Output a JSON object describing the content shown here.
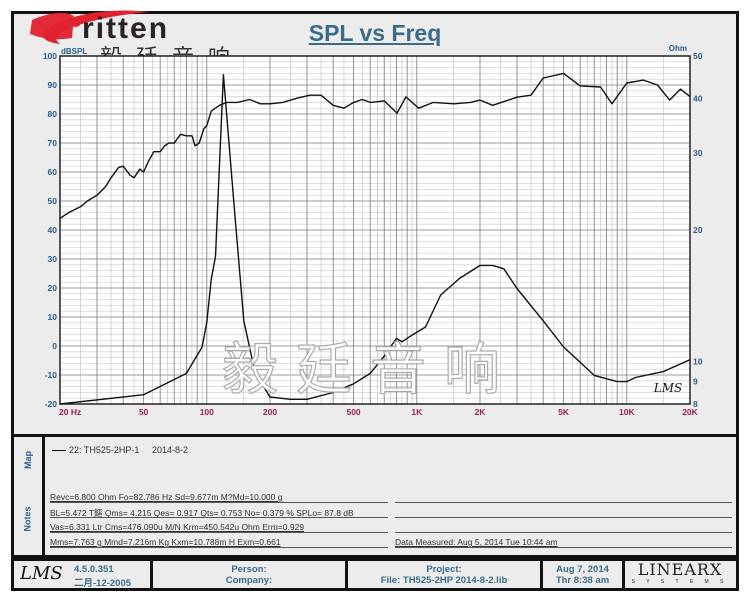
{
  "header": {
    "title": "SPL vs Freq",
    "logo_text": "Eritten",
    "logo_cn": "毅廷音响",
    "watermark": "毅廷音响"
  },
  "chart_data": {
    "type": "line",
    "title": "SPL vs Freq",
    "xscale": "log",
    "xlim": [
      20,
      20000
    ],
    "x_ticks": [
      20,
      50,
      100,
      200,
      500,
      1000,
      2000,
      5000,
      10000,
      20000
    ],
    "x_tick_labels": [
      "20  Hz",
      "50",
      "100",
      "200",
      "500",
      "1K",
      "2K",
      "5K",
      "10K",
      "20K"
    ],
    "ylabel_left": "dBSPL",
    "ylim_left": [
      -20,
      100
    ],
    "y_ticks_left": [
      -20,
      -10,
      0,
      10,
      20,
      30,
      40,
      50,
      60,
      70,
      80,
      90,
      100
    ],
    "ylabel_right": "Ohm",
    "yscale_right": "log",
    "ylim_right": [
      8,
      50
    ],
    "y_ticks_right": [
      8,
      9,
      10,
      20,
      30,
      40,
      50
    ],
    "grid": true,
    "series": [
      {
        "axis": "left",
        "x": [
          20,
          22,
          25,
          27,
          30,
          33,
          35,
          38,
          40,
          43,
          45,
          48,
          50,
          53,
          56,
          60,
          63,
          66,
          70,
          75,
          80,
          85,
          88,
          92,
          97,
          100,
          105,
          115,
          125,
          140,
          160,
          180,
          200,
          230,
          270,
          310,
          350,
          400,
          450,
          500,
          550,
          600,
          700,
          805,
          888,
          1020,
          1200,
          1500,
          1800,
          2000,
          2300,
          3000,
          3500,
          4000,
          5000,
          6000,
          7500,
          8500,
          10000,
          12000,
          14000,
          16000,
          18000,
          20000
        ],
        "y": [
          44,
          46,
          48,
          50,
          52,
          55,
          58,
          61.5,
          62,
          59,
          58,
          61,
          60,
          64,
          67,
          67,
          69,
          70,
          70,
          73,
          72.5,
          72.5,
          69,
          70,
          75,
          76,
          81,
          83,
          84,
          84,
          85,
          83.5,
          83.5,
          84,
          85.5,
          86.5,
          86.5,
          83,
          82,
          84,
          85,
          84,
          84.5,
          80.3,
          85.9,
          82,
          84,
          83.5,
          84,
          84.8,
          83,
          85.8,
          86.5,
          92.4,
          94,
          89.7,
          89.3,
          83.5,
          90.7,
          91.7,
          90,
          84.8,
          88.6,
          86
        ]
      },
      {
        "axis": "right",
        "x": [
          20,
          50,
          80,
          95,
          100,
          105,
          110,
          120,
          135,
          150,
          170,
          200,
          250,
          300,
          400,
          500,
          600,
          700,
          800,
          850,
          950,
          1100,
          1300,
          1600,
          2000,
          2300,
          2600,
          3000,
          4000,
          5000,
          7000,
          9000,
          10000,
          11000,
          15000,
          20000
        ],
        "y": [
          8.0,
          8.4,
          9.4,
          10.8,
          12.3,
          15.4,
          17.4,
          45.3,
          22.6,
          12.4,
          9.4,
          8.3,
          8.2,
          8.2,
          8.5,
          8.9,
          9.4,
          10.3,
          11.3,
          11.1,
          11.5,
          12.0,
          14.2,
          15.5,
          16.6,
          16.6,
          16.3,
          14.7,
          12.4,
          10.8,
          9.3,
          9.0,
          9.0,
          9.2,
          9.5,
          10.1
        ]
      }
    ],
    "annotation": "LMS"
  },
  "map": {
    "label": "Map",
    "entry": "22: TH525-2HP-1",
    "date": "2014-8-2"
  },
  "notes": {
    "label": "Notes",
    "lines": [
      "Revc=6.800 Ohm  Fo=82.786 Hz  Sd=9.677m M?Md=10.000 g",
      "BL=5.472 T鏂  Qms= 4.215  Qes= 0.917  Qts= 0.753  No= 0.379 %  SPLo= 87.8 dB",
      "Vas=6.331 Ltr  Cms=476.090u M/N  Krm=450.542u Ohm  Erm=0.929",
      "Mms=7.763 g  Mmd=7.216m Kg  Kxm=10.788m H  Exm=0.661"
    ],
    "measured": "Data Measured: Aug  5, 2014  Tue 10:44 am"
  },
  "footer": {
    "lms_logo": "LMS",
    "version": "4.5.0.351",
    "build_date": "二月-12-2005",
    "person": "Person:",
    "company": "Company:",
    "project": "Project:",
    "file": "File: TH525-2HP   2014-8-2.lib",
    "date": "Aug  7, 2014",
    "time": "Thr  8:38 am",
    "linearx_logo": "LINEARX",
    "linearx_sub": "S Y S T E M S"
  },
  "colors": {
    "y_tick": "#2a5d8f",
    "x_tick": "#a0204a",
    "title": "#3b6b8a",
    "curve": "#111111",
    "logo_red": "#e0222e"
  }
}
